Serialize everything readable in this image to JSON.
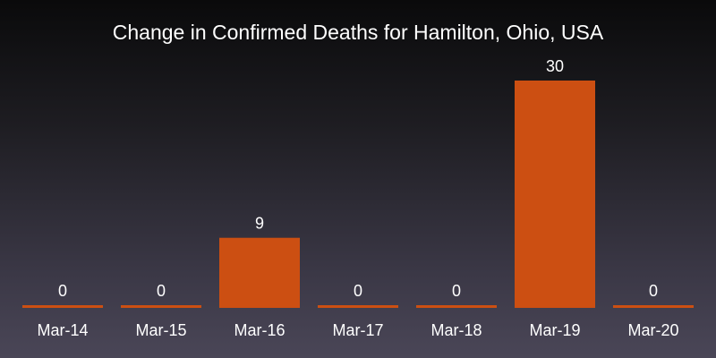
{
  "chart_data": {
    "type": "bar",
    "title": "Change in Confirmed Deaths for Hamilton, Ohio, USA",
    "categories": [
      "Mar-14",
      "Mar-15",
      "Mar-16",
      "Mar-17",
      "Mar-18",
      "Mar-19",
      "Mar-20"
    ],
    "values": [
      0,
      0,
      9,
      0,
      0,
      30,
      0
    ],
    "data_labels": [
      "0",
      "0",
      "9",
      "0",
      "0",
      "30",
      "0"
    ],
    "xlabel": "",
    "ylabel": "",
    "ylim": [
      0,
      30
    ],
    "grid": false,
    "legend": "none",
    "bar_color": "#cc4f12"
  }
}
